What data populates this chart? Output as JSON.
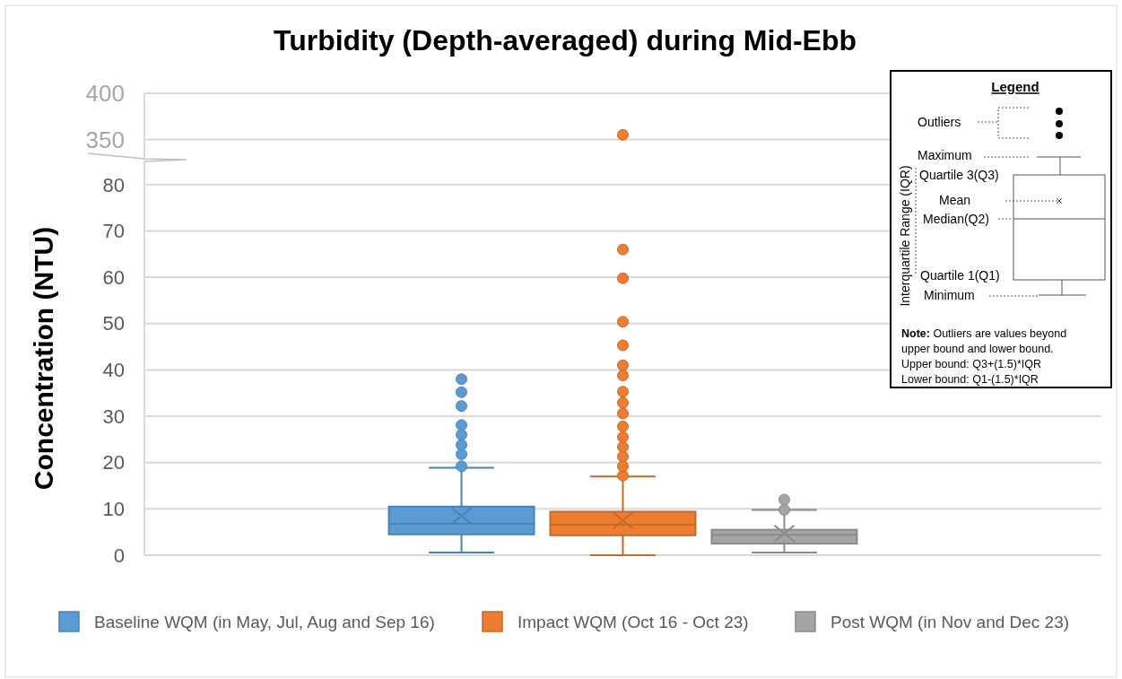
{
  "chart_data": [
    {
      "type": "scatter",
      "title": "Turbidity (Depth-averaged) during Mid-Ebb",
      "categories": [
        null
      ],
      "ylim": [
        330,
        400
      ],
      "yticks": [
        350,
        400
      ],
      "grid": "y",
      "tick_labels": "y",
      "marker": "circle",
      "series": [
        {
          "color": "#ed7d31",
          "values": [
            355
          ]
        }
      ]
    },
    {
      "type": "box",
      "ylabel": "Concentration  (NTU)",
      "categories": [
        null
      ],
      "ylim": [
        0,
        85
      ],
      "yticks": [
        0,
        10,
        20,
        30,
        40,
        50,
        60,
        70,
        80
      ],
      "grid": "y",
      "legend": "bottom",
      "series": [
        {
          "name": "Baseline WQM (in May, Jul, Aug and Sep 16)",
          "color": "#5b9bd5",
          "boxes": [
            {
              "low": 0.6,
              "q1": 4.5,
              "median": 6.8,
              "q3": 10.5,
              "high": 18.9,
              "mean": 8.5,
              "outliers": [
                19.2,
                21.8,
                23.8,
                26.0,
                28.1,
                32.2,
                35.2,
                38.0
              ]
            }
          ]
        },
        {
          "name": "Impact WQM (Oct 16 - Oct 23)",
          "color": "#ed7d31",
          "boxes": [
            {
              "low": 0,
              "q1": 4.3,
              "median": 6.6,
              "q3": 9.4,
              "high": 17.0,
              "mean": 7.5,
              "outliers": [
                17.2,
                19.2,
                21.3,
                23.4,
                25.5,
                27.8,
                30.6,
                32.9,
                35.3,
                38.8,
                41.0,
                45.3,
                50.4,
                59.8,
                66.0
              ]
            }
          ]
        },
        {
          "name": "Post WQM (in Nov and Dec 23)",
          "color": "#a5a5a5",
          "boxes": [
            {
              "low": 0.6,
              "q1": 2.5,
              "median": 4.4,
              "q3": 5.5,
              "high": 9.8,
              "mean": 4.7,
              "outliers": [
                9.8,
                12.0
              ]
            }
          ]
        }
      ],
      "annotations": [
        "Legend",
        "Outliers",
        "Maximum",
        "Quartile 3(Q3)",
        "Mean",
        "Median(Q2)",
        "Quartile 1(Q1)",
        "Minimum",
        "Interquartile Range (IQR)",
        "Note: Outliers are values beyond upper bound and lower bound.",
        "Upper bound: Q3+(1.5)*IQR",
        "Lower bound: Q1-(1.5)*IQR"
      ]
    }
  ]
}
